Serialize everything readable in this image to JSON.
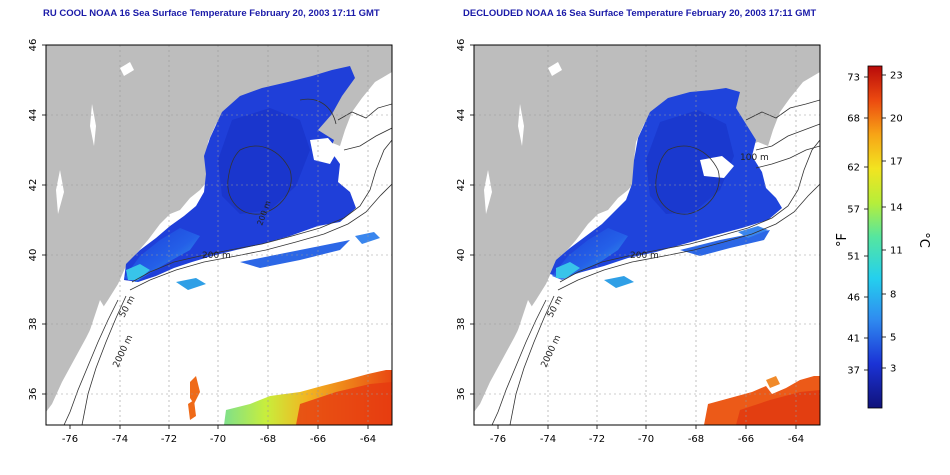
{
  "maps": [
    {
      "title": "RU COOL NOAA 16 Sea Surface Temperature February 20, 2003 17:11 GMT",
      "contour_labels": [
        "200 m",
        "50 m",
        "2000 m",
        "200 m"
      ]
    },
    {
      "title": "DECLOUDED NOAA 16 Sea Surface Temperature February 20, 2003 17:11 GMT",
      "contour_labels": [
        "200 m",
        "50 m",
        "2000 m",
        "100 m"
      ]
    }
  ],
  "axes": {
    "lon_ticks": [
      "-76",
      "-74",
      "-72",
      "-70",
      "-68",
      "-66",
      "-64"
    ],
    "lat_ticks": [
      "36",
      "38",
      "40",
      "42",
      "44",
      "46"
    ]
  },
  "colorbar": {
    "unit_f": "°F",
    "unit_c": "°C",
    "f_ticks": [
      "73",
      "68",
      "62",
      "57",
      "51",
      "46",
      "41",
      "37"
    ],
    "c_ticks": [
      "23",
      "20",
      "17",
      "14",
      "11",
      "8",
      "5",
      "3"
    ]
  },
  "colors": {
    "land": "#bdbdbd",
    "cold_water": "#1e3cd8",
    "warm_water": "#f05a1e",
    "title_text": "#1a1aa8"
  }
}
